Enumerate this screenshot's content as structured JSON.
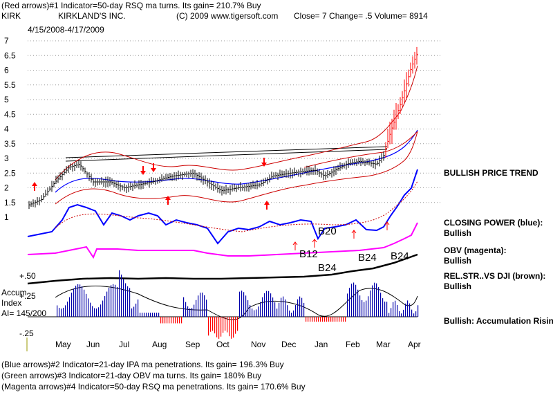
{
  "header": {
    "line1": "(Red arrows)#1 Indicator=50-day RSQ ma turns. Its gain= 210.7% Buy",
    "symbol": "KIRK",
    "company": "KIRKLAND'S INC.",
    "copyright": "(C) 2009 www.tigersoft.com",
    "quote": "Close=  7  Change= .5 Volume= 8914",
    "date_range": "4/15/2008-4/17/2009"
  },
  "price_axis": {
    "ticks": [
      "7",
      "6.5",
      "6",
      "5.5",
      "5",
      "4.5",
      "4",
      "3.5",
      "3",
      "2.5",
      "2",
      "1.5",
      "1"
    ],
    "values": [
      7,
      6.5,
      6,
      5.5,
      5,
      4.5,
      4,
      3.5,
      3,
      2.5,
      2,
      1.5,
      1
    ]
  },
  "months": [
    "May",
    "Jun",
    "Jul",
    "Aug",
    "Sep",
    "Oct",
    "Nov",
    "Dec",
    "Jan",
    "Feb",
    "Mar",
    "Apr"
  ],
  "signal_labels": [
    "B20",
    "B12",
    "B24",
    "B24",
    "B24"
  ],
  "accum_panel": {
    "title_line1": "Accum",
    "title_line2": "Index",
    "ai_value": "AI= 145/200",
    "ticks": [
      "+.50",
      "+.25",
      "-.25"
    ]
  },
  "side_labels": {
    "price_trend": "BULLISH PRICE TREND",
    "closing_power_title": "CLOSING POWER (blue):",
    "closing_power_status": "Bullish",
    "obv_title": "OBV (magenta):",
    "obv_status": "Bullish",
    "relstr_title": "REL.STR..VS DJI (brown):",
    "relstr_status": "Bullish",
    "accum_status": "Bullish: Accumulation Rising"
  },
  "footer": {
    "line1": "(Blue arrows)#2 Indicator=21-day IPA ma penetrations. Its gain= 196.3% Buy",
    "line2": "(Green arrows)#3 Indicator=21-day OBV ma turns. Its gain= 180% Buy",
    "line3": "(Magenta arrows)#4 Indicator=50-day RSQ ma penetrations. Its gain= 170.6% Buy"
  },
  "colors": {
    "price_bars": "#000000",
    "up_signal": "#ff0000",
    "bands": "#cc0000",
    "ma": "#0000ff",
    "closing_power": "#0000ff",
    "obv": "#ff00ff",
    "rel_str": "#000000",
    "accum_pos": "#0000aa",
    "accum_neg": "#ff0000",
    "gridline": "#999999"
  },
  "chart_data": {
    "type": "line",
    "title": "KIRKLAND'S INC.",
    "x": [
      "May",
      "Jun",
      "Jul",
      "Aug",
      "Sep",
      "Oct",
      "Nov",
      "Dec",
      "Jan",
      "Feb",
      "Mar",
      "Apr"
    ],
    "ylim": [
      1,
      7
    ],
    "series": [
      {
        "values": [
          2.3,
          2.7,
          2.1,
          2.2,
          2.5,
          1.9,
          2.2,
          2.6,
          2.7,
          2.9,
          2.8,
          6.6
        ]
      }
    ],
    "grid": true
  }
}
